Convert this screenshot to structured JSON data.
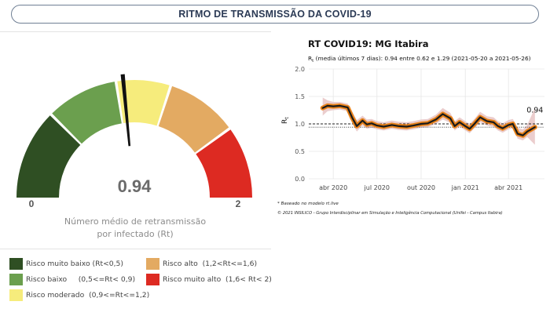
{
  "header": {
    "title": "RITMO DE TRANSMISSÃO DA COVID-19"
  },
  "gauge": {
    "value_label": "0.94",
    "min_label": "0",
    "max_label": "2",
    "caption_line1": "Número médio de retransmissão",
    "caption_line2": "por infectado (Rt)",
    "value": 0.94,
    "min": 0,
    "max": 2,
    "bands": [
      {
        "from": 0.0,
        "to": 0.5,
        "color": "#2f4f23"
      },
      {
        "from": 0.5,
        "to": 0.9,
        "color": "#6b9f4e"
      },
      {
        "from": 0.9,
        "to": 1.2,
        "color": "#f6ec7c"
      },
      {
        "from": 1.2,
        "to": 1.6,
        "color": "#e3aa62"
      },
      {
        "from": 1.6,
        "to": 2.0,
        "color": "#dd2a22"
      }
    ]
  },
  "legend": {
    "items": [
      {
        "label": "Risco muito baixo (Rt<0,5)",
        "color": "#2f4f23"
      },
      {
        "label": "Risco baixo     (0,5<=Rt< 0,9)",
        "color": "#6b9f4e"
      },
      {
        "label": "Risco moderado  (0,9<=Rt<=1,2)",
        "color": "#f6ec7c"
      },
      {
        "label": "Risco alto  (1,2<Rt<=1,6)",
        "color": "#e3aa62"
      },
      {
        "label": "Risco muito alto  (1,6< Rt< 2)",
        "color": "#dd2a22"
      }
    ]
  },
  "chart_data": {
    "type": "line",
    "title": "RT COVID19: MG Itabira",
    "subtitle_pre": "R",
    "subtitle_sub": "t",
    "subtitle_post": " (media últimos 7 dias): 0.94 entre 0.62 e 1.29 (2021-05-20 a 2021-05-26)",
    "ylabel_main": "R",
    "ylabel_sub": "t",
    "last_value_label": "0.94",
    "ylim": [
      0,
      2
    ],
    "yticks": [
      0,
      0.5,
      1,
      1.5,
      2
    ],
    "ytick_labels": [
      "0.0",
      "0.5",
      "1.0",
      "1.5",
      "2.0"
    ],
    "xlim": [
      "2020-02-10",
      "2021-06-15"
    ],
    "xticks": [
      "2020-04-01",
      "2020-07-01",
      "2020-10-01",
      "2021-01-01",
      "2021-04-01"
    ],
    "xtick_labels": [
      "abr 2020",
      "jul 2020",
      "out 2020",
      "jan 2021",
      "abr 2021"
    ],
    "reference_lines": [
      1.0,
      0.94
    ],
    "grid": true,
    "series": [
      {
        "x": [
          "2020-03-10",
          "2020-03-20",
          "2020-04-01",
          "2020-04-15",
          "2020-05-01",
          "2020-05-10",
          "2020-05-20",
          "2020-06-01",
          "2020-06-10",
          "2020-06-20",
          "2020-07-01",
          "2020-07-15",
          "2020-08-01",
          "2020-08-15",
          "2020-09-01",
          "2020-09-15",
          "2020-10-01",
          "2020-10-15",
          "2020-11-01",
          "2020-11-15",
          "2020-12-01",
          "2020-12-10",
          "2020-12-20",
          "2021-01-01",
          "2021-01-10",
          "2021-01-20",
          "2021-02-01",
          "2021-02-15",
          "2021-03-01",
          "2021-03-10",
          "2021-03-20",
          "2021-04-01",
          "2021-04-10",
          "2021-04-20",
          "2021-05-01",
          "2021-05-10",
          "2021-05-26"
        ],
        "y": [
          1.29,
          1.33,
          1.32,
          1.33,
          1.3,
          1.12,
          0.96,
          1.06,
          0.99,
          1.01,
          0.97,
          0.95,
          0.98,
          0.96,
          0.95,
          0.97,
          1.0,
          1.01,
          1.08,
          1.18,
          1.1,
          0.96,
          1.03,
          0.96,
          0.91,
          1.0,
          1.12,
          1.05,
          1.03,
          0.96,
          0.92,
          0.98,
          1.0,
          0.82,
          0.79,
          0.86,
          0.94
        ],
        "lower": [
          1.15,
          1.23,
          1.25,
          1.26,
          1.23,
          1.02,
          0.86,
          0.97,
          0.91,
          0.93,
          0.9,
          0.88,
          0.91,
          0.89,
          0.88,
          0.9,
          0.93,
          0.94,
          1.0,
          1.08,
          1.02,
          0.88,
          0.95,
          0.88,
          0.83,
          0.92,
          1.03,
          0.97,
          0.95,
          0.88,
          0.84,
          0.9,
          0.92,
          0.73,
          0.7,
          0.76,
          0.62
        ],
        "upper": [
          1.48,
          1.43,
          1.4,
          1.4,
          1.37,
          1.23,
          1.07,
          1.15,
          1.08,
          1.09,
          1.05,
          1.03,
          1.06,
          1.04,
          1.03,
          1.05,
          1.08,
          1.09,
          1.17,
          1.29,
          1.2,
          1.05,
          1.12,
          1.05,
          1.0,
          1.09,
          1.22,
          1.14,
          1.12,
          1.05,
          1.01,
          1.07,
          1.09,
          0.93,
          0.9,
          0.98,
          1.29
        ],
        "color": "#1a1a1a",
        "highlight_color": "#e8821a",
        "band_color": "#e8c4c4"
      }
    ]
  },
  "notes": {
    "line1": "* Baseado no modelo rt.live",
    "line2": "© 2021 INSILICO - Grupo Interdisciplinar em Simulação e Inteligência Computacional (Unifei - Campus Itabira)"
  }
}
